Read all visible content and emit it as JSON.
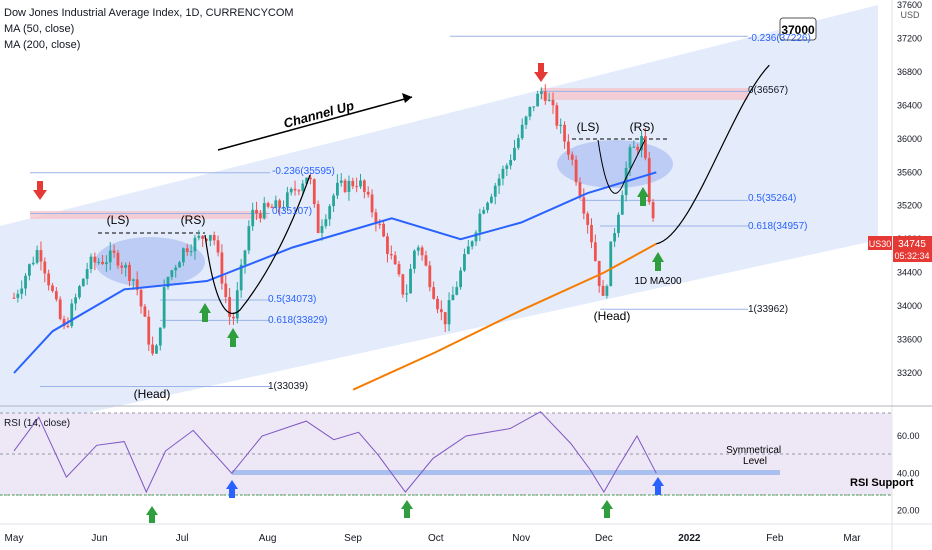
{
  "header": {
    "symbol": "Dow Jones Industrial Average Index, 1D, CURRENCYCOM",
    "ma50": "MA (50, close)",
    "ma200": "MA (200, close)"
  },
  "price_axis": {
    "currency": "USD",
    "ticks": [
      "37600",
      "37200",
      "36800",
      "36400",
      "36000",
      "35600",
      "35200",
      "34800",
      "34400",
      "34000",
      "33600",
      "33200"
    ],
    "symbol_tag": "US30",
    "last_price": "34745",
    "countdown": "05:32:34"
  },
  "rsi_panel": {
    "title": "RSI (14, close)",
    "ticks": [
      "60.00",
      "40.00",
      "20.00"
    ]
  },
  "time_axis": [
    "May",
    "Jun",
    "Jul",
    "Aug",
    "Sep",
    "Oct",
    "Nov",
    "Dec",
    "2022",
    "Feb",
    "Mar"
  ],
  "annotations": {
    "channel_up": "Channel Up",
    "target": "37000",
    "ls": "(LS)",
    "rs": "(RS)",
    "head": "(Head)",
    "ma200_label": "1D MA200",
    "symmetrical_level": "Symmetrical\nLevel",
    "rsi_support": "RSI Support",
    "fib_236_left": "-0.236(35595)",
    "fib_0_left": "0(35107)",
    "fib_05_left": "0.5(34073)",
    "fib_618_left": "0.618(33829)",
    "fib_1_left": "1(33039)",
    "fib_236_right": "-0.236(37226)",
    "fib_0_right": "0(36567)",
    "fib_05_right": "0.5(35264)",
    "fib_618_right": "0.618(34957)",
    "fib_1_right": "1(33962)"
  },
  "colors": {
    "up": "#26a69a",
    "down": "#ef5350",
    "ma50": "#2962ff",
    "ma200": "#f57c00",
    "channel": "#dbe6fb",
    "rsi_line": "#7e57c2",
    "rsi_band": "#ede7f6",
    "arrow_up": "#2e9e3e",
    "arrow_down": "#e53935",
    "arrow_blue": "#2962ff",
    "fib": "#2962ff",
    "resistance_zone": "#f5c6cb"
  },
  "chart_data": {
    "type": "candlestick",
    "ylim": [
      33000,
      37700
    ],
    "ylabel": "USD",
    "x_ticks": [
      "May",
      "Jun",
      "Jul",
      "Aug",
      "Sep",
      "Oct",
      "Nov",
      "Dec",
      "2022",
      "Feb",
      "Mar"
    ],
    "price_path": [
      [
        "2021-05-01",
        34100
      ],
      [
        "2021-05-10",
        34700
      ],
      [
        "2021-05-19",
        33700
      ],
      [
        "2021-05-28",
        34500
      ],
      [
        "2021-06-07",
        34600
      ],
      [
        "2021-06-14",
        34300
      ],
      [
        "2021-06-21",
        33300
      ],
      [
        "2021-06-25",
        34300
      ],
      [
        "2021-07-02",
        34700
      ],
      [
        "2021-07-12",
        34900
      ],
      [
        "2021-07-19",
        33750
      ],
      [
        "2021-07-26",
        35100
      ],
      [
        "2021-08-06",
        35200
      ],
      [
        "2021-08-16",
        35600
      ],
      [
        "2021-08-19",
        34900
      ],
      [
        "2021-08-26",
        35400
      ],
      [
        "2021-09-03",
        35500
      ],
      [
        "2021-09-10",
        35000
      ],
      [
        "2021-09-20",
        34100
      ],
      [
        "2021-09-24",
        34800
      ],
      [
        "2021-10-04",
        33800
      ],
      [
        "2021-10-11",
        34500
      ],
      [
        "2021-10-18",
        35200
      ],
      [
        "2021-10-27",
        35700
      ],
      [
        "2021-11-05",
        36400
      ],
      [
        "2021-11-09",
        36600
      ],
      [
        "2021-11-19",
        35800
      ],
      [
        "2021-11-26",
        34900
      ],
      [
        "2021-12-01",
        34000
      ],
      [
        "2021-12-03",
        34600
      ],
      [
        "2021-12-10",
        35800
      ],
      [
        "2021-12-15",
        36000
      ],
      [
        "2021-12-17",
        35400
      ],
      [
        "2021-12-20",
        34745
      ]
    ],
    "projection": [
      [
        "2021-12-20",
        34745
      ],
      [
        "2022-01-02",
        35300
      ],
      [
        "2022-01-16",
        36400
      ],
      [
        "2022-01-30",
        37000
      ]
    ],
    "series": [
      {
        "name": "MA (50, close)",
        "values": [
          [
            "2021-05-01",
            33200
          ],
          [
            "2021-05-15",
            33700
          ],
          [
            "2021-06-10",
            34200
          ],
          [
            "2021-07-10",
            34300
          ],
          [
            "2021-08-10",
            34700
          ],
          [
            "2021-09-15",
            35050
          ],
          [
            "2021-10-10",
            34800
          ],
          [
            "2021-11-01",
            35000
          ],
          [
            "2021-11-25",
            35350
          ],
          [
            "2021-12-20",
            35600
          ]
        ]
      },
      {
        "name": "MA (200, close)",
        "values": [
          [
            "2021-09-01",
            33000
          ],
          [
            "2021-10-01",
            33450
          ],
          [
            "2021-11-01",
            33950
          ],
          [
            "2021-12-01",
            34400
          ],
          [
            "2021-12-20",
            34745
          ]
        ]
      }
    ],
    "rsi": {
      "title": "RSI (14, close)",
      "ylim": [
        15,
        75
      ],
      "points": [
        [
          "2021-05-01",
          52
        ],
        [
          "2021-05-10",
          70
        ],
        [
          "2021-05-20",
          38
        ],
        [
          "2021-05-31",
          55
        ],
        [
          "2021-06-10",
          57
        ],
        [
          "2021-06-18",
          30
        ],
        [
          "2021-06-25",
          52
        ],
        [
          "2021-07-05",
          63
        ],
        [
          "2021-07-19",
          40
        ],
        [
          "2021-07-30",
          60
        ],
        [
          "2021-08-15",
          68
        ],
        [
          "2021-08-25",
          58
        ],
        [
          "2021-09-03",
          62
        ],
        [
          "2021-09-10",
          50
        ],
        [
          "2021-09-20",
          30
        ],
        [
          "2021-09-30",
          48
        ],
        [
          "2021-10-12",
          60
        ],
        [
          "2021-10-28",
          64
        ],
        [
          "2021-11-08",
          73
        ],
        [
          "2021-11-19",
          56
        ],
        [
          "2021-11-26",
          42
        ],
        [
          "2021-12-01",
          30
        ],
        [
          "2021-12-06",
          43
        ],
        [
          "2021-12-13",
          60
        ],
        [
          "2021-12-20",
          40
        ]
      ],
      "levels": [
        30,
        41
      ]
    }
  }
}
